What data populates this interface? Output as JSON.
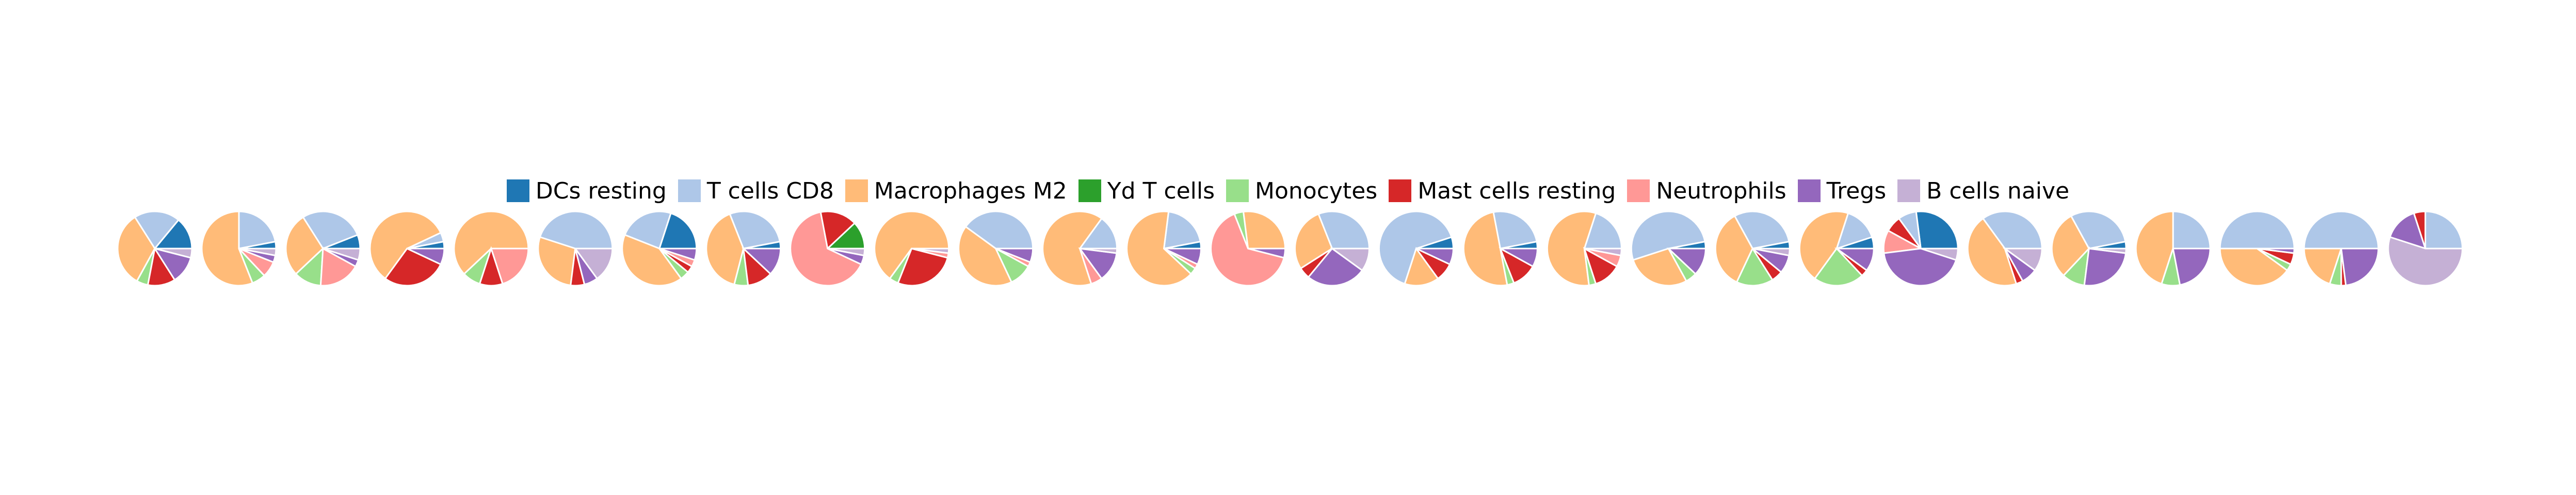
{
  "chart_data": {
    "type": "pie",
    "legend": [
      {
        "label": "DCs resting",
        "color": "#1f77b4"
      },
      {
        "label": "T cells CD8",
        "color": "#aec7e8"
      },
      {
        "label": "Macrophages M2",
        "color": "#ffbb78"
      },
      {
        "label": "Yd T cells",
        "color": "#2ca02c"
      },
      {
        "label": "Monocytes",
        "color": "#98df8a"
      },
      {
        "label": "Mast cells resting",
        "color": "#d62728"
      },
      {
        "label": "Neutrophils",
        "color": "#ff9896"
      },
      {
        "label": "Tregs",
        "color": "#9467bd"
      },
      {
        "label": "B cells naive",
        "color": "#c5b0d5"
      }
    ],
    "legend_position": "top-center",
    "series_order": [
      "DCs resting",
      "T cells CD8",
      "Macrophages M2",
      "Yd T cells",
      "Monocytes",
      "Mast cells resting",
      "Neutrophils",
      "Tregs",
      "B cells naive"
    ],
    "pies": [
      [
        14,
        20,
        33,
        0,
        5,
        12,
        0,
        12,
        4
      ],
      [
        3,
        22,
        56,
        0,
        6,
        0,
        7,
        3,
        3
      ],
      [
        6,
        28,
        28,
        0,
        12,
        0,
        18,
        3,
        5
      ],
      [
        3,
        4,
        58,
        0,
        0,
        28,
        0,
        7,
        0
      ],
      [
        0,
        0,
        62,
        0,
        8,
        10,
        20,
        0,
        0
      ],
      [
        0,
        45,
        28,
        0,
        0,
        6,
        0,
        6,
        15
      ],
      [
        20,
        24,
        41,
        0,
        4,
        3,
        3,
        5,
        0
      ],
      [
        3,
        28,
        40,
        0,
        6,
        11,
        0,
        12,
        0
      ],
      [
        0,
        0,
        0,
        12,
        0,
        16,
        65,
        4,
        3
      ],
      [
        0,
        0,
        65,
        0,
        4,
        27,
        2,
        0,
        2
      ],
      [
        0,
        40,
        42,
        0,
        10,
        0,
        2,
        6,
        0
      ],
      [
        0,
        15,
        65,
        0,
        0,
        0,
        5,
        13,
        2
      ],
      [
        3,
        20,
        65,
        0,
        3,
        0,
        2,
        7,
        0
      ],
      [
        0,
        0,
        27,
        0,
        4,
        0,
        65,
        4,
        0
      ],
      [
        0,
        31,
        28,
        0,
        0,
        5,
        0,
        26,
        10
      ],
      [
        5,
        65,
        15,
        0,
        0,
        8,
        0,
        7,
        0
      ],
      [
        3,
        25,
        50,
        0,
        3,
        11,
        0,
        8,
        0
      ],
      [
        0,
        20,
        57,
        0,
        3,
        12,
        5,
        0,
        3
      ],
      [
        3,
        52,
        28,
        0,
        5,
        0,
        0,
        12,
        0
      ],
      [
        3,
        30,
        35,
        0,
        16,
        5,
        0,
        8,
        3
      ],
      [
        5,
        15,
        45,
        0,
        22,
        3,
        0,
        10,
        0
      ],
      [
        27,
        8,
        0,
        0,
        0,
        7,
        10,
        43,
        5
      ],
      [
        0,
        35,
        45,
        0,
        0,
        3,
        0,
        7,
        10
      ],
      [
        3,
        30,
        30,
        0,
        10,
        0,
        0,
        25,
        2
      ],
      [
        0,
        25,
        45,
        0,
        8,
        0,
        0,
        22,
        0
      ],
      [
        0,
        50,
        40,
        0,
        3,
        5,
        0,
        2,
        0
      ],
      [
        0,
        50,
        20,
        0,
        5,
        2,
        0,
        23,
        0
      ],
      [
        0,
        25,
        0,
        0,
        0,
        5,
        0,
        15,
        55
      ]
    ]
  }
}
